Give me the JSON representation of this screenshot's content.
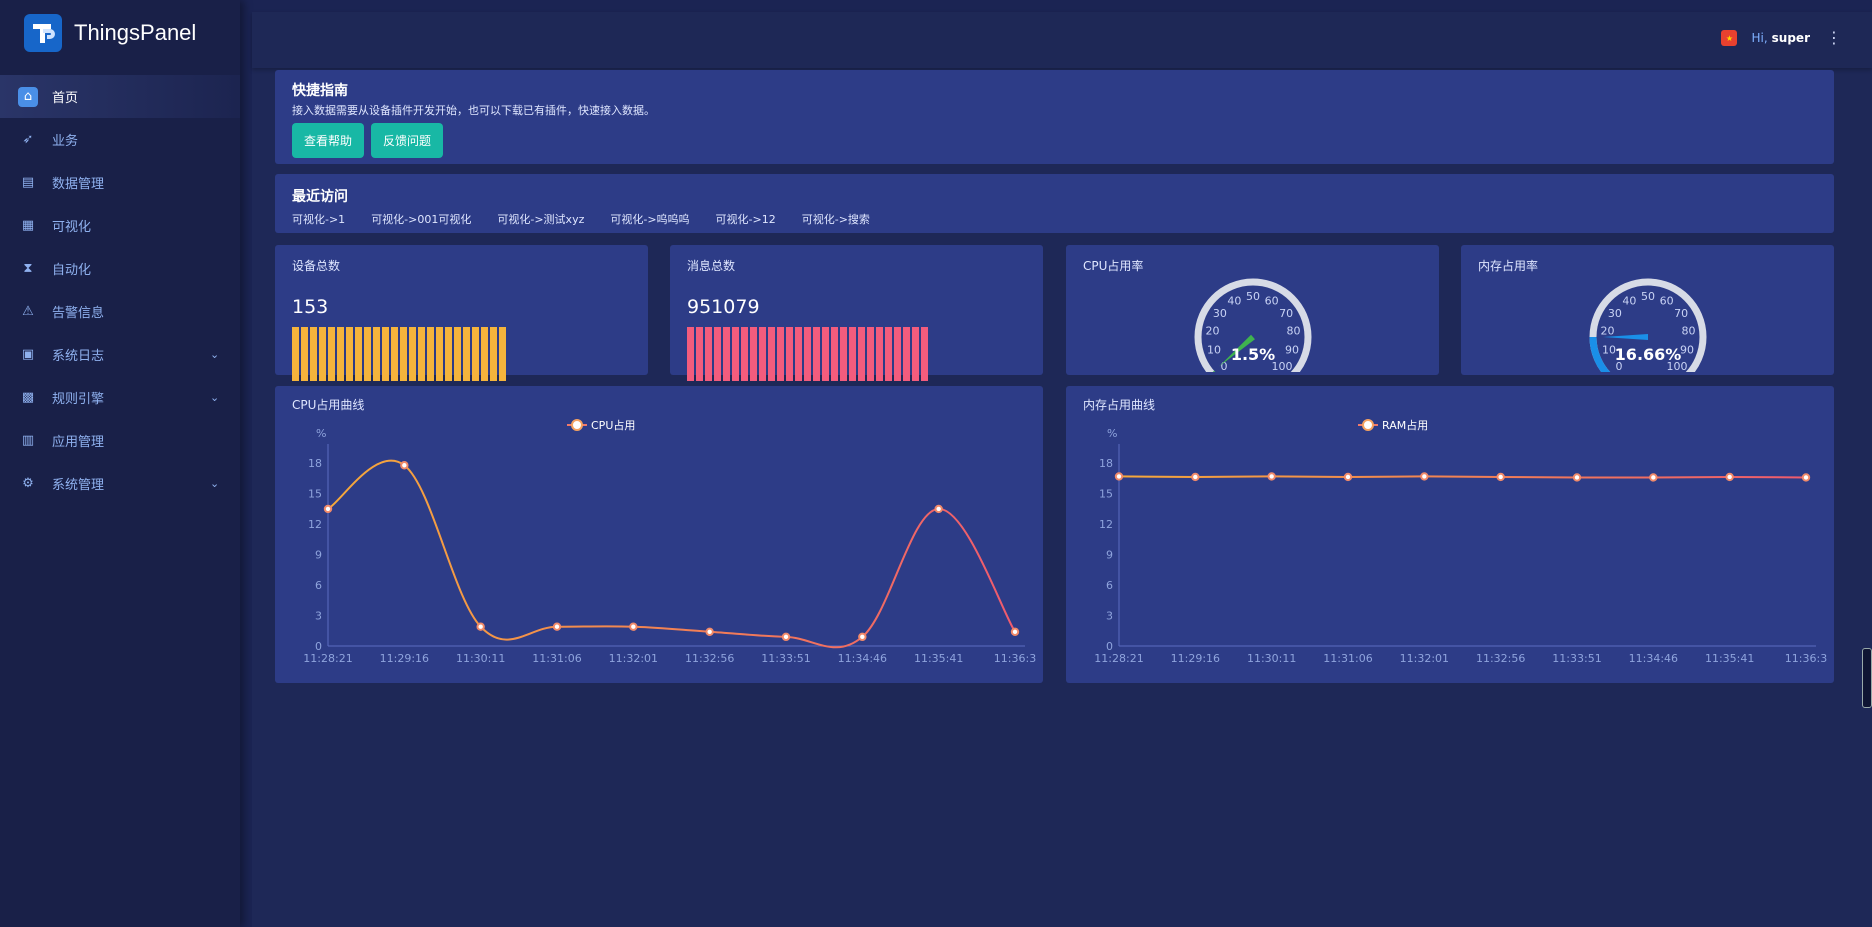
{
  "brand": {
    "name": "ThingsPanel"
  },
  "sidebar": {
    "items": [
      {
        "label": "首页",
        "icon": "home-icon",
        "active": true
      },
      {
        "label": "业务",
        "icon": "rocket-icon"
      },
      {
        "label": "数据管理",
        "icon": "database-icon"
      },
      {
        "label": "可视化",
        "icon": "chart-icon"
      },
      {
        "label": "自动化",
        "icon": "hourglass-icon"
      },
      {
        "label": "告警信息",
        "icon": "warning-icon"
      },
      {
        "label": "系统日志",
        "icon": "log-icon",
        "expand": true
      },
      {
        "label": "规则引擎",
        "icon": "gift-icon",
        "expand": true
      },
      {
        "label": "应用管理",
        "icon": "basket-icon"
      },
      {
        "label": "系统管理",
        "icon": "gear-icon",
        "expand": true
      }
    ]
  },
  "header": {
    "greeting": "Hi,",
    "username": "super"
  },
  "guide": {
    "title": "快捷指南",
    "desc": "接入数据需要从设备插件开发开始，也可以下载已有插件，快速接入数据。",
    "btn_help": "查看帮助",
    "btn_feedback": "反馈问题"
  },
  "recent": {
    "title": "最近访问",
    "links": [
      "可视化->1",
      "可视化->001可视化",
      "可视化->测试xyz",
      "可视化->呜呜呜",
      "可视化->12",
      "可视化->搜索"
    ]
  },
  "stats": {
    "devices": {
      "title": "设备总数",
      "value": "153",
      "color": "#f5b43c",
      "bar_count": 24
    },
    "messages": {
      "title": "消息总数",
      "value": "951079",
      "color": "#f35c7d",
      "bar_count": 27
    },
    "cpu": {
      "title": "CPU占用率",
      "display": "1.5%",
      "value": 1.5,
      "color": "#3fb34f"
    },
    "mem": {
      "title": "内存占用率",
      "display": "16.66%",
      "value": 16.66,
      "color": "#1a8fe8"
    }
  },
  "gauge_ticks": [
    "0",
    "10",
    "20",
    "30",
    "40",
    "50",
    "60",
    "70",
    "80",
    "90",
    "100"
  ],
  "cpu_chart": {
    "title": "CPU占用曲线",
    "legend": "CPU占用",
    "unit": "%"
  },
  "mem_chart": {
    "title": "内存占用曲线",
    "legend": "RAM占用",
    "unit": "%"
  },
  "chart_data": [
    {
      "type": "line",
      "title": "CPU占用曲线",
      "ylabel": "%",
      "series": [
        {
          "name": "CPU占用",
          "values": [
            13.5,
            17.8,
            1.9,
            1.9,
            1.9,
            1.4,
            0.9,
            0.9,
            13.5,
            1.4
          ]
        }
      ],
      "categories": [
        "11:28:21",
        "11:29:16",
        "11:30:11",
        "11:31:06",
        "11:32:01",
        "11:32:56",
        "11:33:51",
        "11:34:46",
        "11:35:41",
        "11:36:3"
      ],
      "yticks": [
        "0",
        "3",
        "6",
        "9",
        "12",
        "15",
        "18"
      ],
      "ylim": [
        0,
        19.5
      ]
    },
    {
      "type": "line",
      "title": "内存占用曲线",
      "ylabel": "%",
      "series": [
        {
          "name": "RAM占用",
          "values": [
            16.7,
            16.65,
            16.7,
            16.65,
            16.7,
            16.65,
            16.6,
            16.6,
            16.65,
            16.6
          ]
        }
      ],
      "categories": [
        "11:28:21",
        "11:29:16",
        "11:30:11",
        "11:31:06",
        "11:32:01",
        "11:32:56",
        "11:33:51",
        "11:34:46",
        "11:35:41",
        "11:36:3"
      ],
      "yticks": [
        "0",
        "3",
        "6",
        "9",
        "12",
        "15",
        "18"
      ],
      "ylim": [
        0,
        19.5
      ]
    }
  ]
}
